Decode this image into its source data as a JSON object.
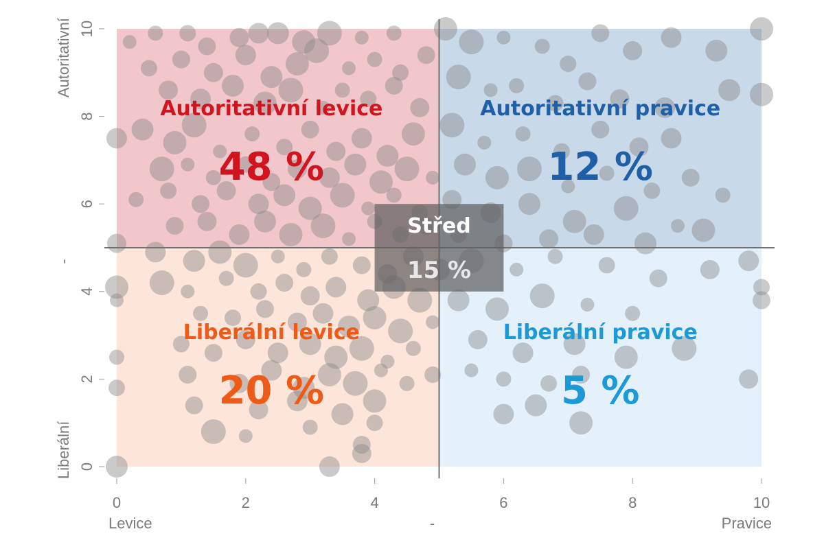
{
  "chart_data": {
    "type": "scatter",
    "xlim": [
      0,
      10
    ],
    "ylim": [
      0,
      10
    ],
    "x_ticks": [
      0,
      2,
      4,
      6,
      8,
      10
    ],
    "y_ticks": [
      0,
      2,
      4,
      6,
      8,
      10
    ],
    "x_axis": {
      "left_label": "Levice",
      "center_label": "-",
      "right_label": "Pravice"
    },
    "y_axis": {
      "bottom_label": "Liberální",
      "center_label": "-",
      "top_label": "Autoritativní"
    },
    "dividers": {
      "x": 5,
      "y": 5
    },
    "quadrants": [
      {
        "key": "top_left",
        "title": "Autoritativní levice",
        "value": "48 %",
        "color": "#d0151f",
        "fill": "#f2c7cb",
        "x": [
          0,
          5
        ],
        "y": [
          5,
          10
        ]
      },
      {
        "key": "top_right",
        "title": "Autoritativní pravice",
        "value": "12 %",
        "color": "#1f5fa8",
        "fill": "#c8d9ea",
        "x": [
          5,
          10
        ],
        "y": [
          5,
          10
        ]
      },
      {
        "key": "bottom_left",
        "title": "Liberální levice",
        "value": "20 %",
        "color": "#ee5a18",
        "fill": "#fde5da",
        "x": [
          0,
          5
        ],
        "y": [
          0,
          5
        ]
      },
      {
        "key": "bottom_right",
        "title": "Liberální pravice",
        "value": "5 %",
        "color": "#1d9ad6",
        "fill": "#e4f1fb",
        "x": [
          5,
          10
        ],
        "y": [
          0,
          5
        ]
      }
    ],
    "center": {
      "title": "Střed",
      "value": "15 %",
      "x": [
        4,
        6
      ],
      "y": [
        4,
        6
      ]
    },
    "points": [
      [
        0.2,
        9.7
      ],
      [
        0.6,
        9.9
      ],
      [
        1.1,
        9.9
      ],
      [
        1.4,
        9.6
      ],
      [
        1.9,
        9.8
      ],
      [
        2.2,
        9.9
      ],
      [
        2.5,
        9.9
      ],
      [
        2.9,
        9.7
      ],
      [
        3.3,
        9.9
      ],
      [
        3.8,
        9.8
      ],
      [
        4.3,
        9.9
      ],
      [
        0.5,
        9.1
      ],
      [
        1.0,
        9.3
      ],
      [
        1.5,
        9.0
      ],
      [
        2.0,
        9.4
      ],
      [
        2.4,
        8.9
      ],
      [
        2.8,
        9.2
      ],
      [
        3.1,
        9.5
      ],
      [
        3.6,
        9.1
      ],
      [
        4.0,
        9.3
      ],
      [
        4.4,
        9.0
      ],
      [
        4.8,
        9.4
      ],
      [
        0.8,
        8.6
      ],
      [
        1.3,
        8.4
      ],
      [
        1.8,
        8.7
      ],
      [
        2.3,
        8.3
      ],
      [
        2.7,
        8.6
      ],
      [
        3.2,
        8.2
      ],
      [
        3.5,
        8.6
      ],
      [
        3.9,
        8.4
      ],
      [
        4.3,
        8.7
      ],
      [
        4.7,
        8.2
      ],
      [
        0.0,
        7.5
      ],
      [
        0.4,
        7.7
      ],
      [
        0.9,
        7.4
      ],
      [
        1.2,
        7.8
      ],
      [
        1.6,
        7.2
      ],
      [
        2.1,
        7.6
      ],
      [
        2.6,
        7.3
      ],
      [
        3.0,
        7.7
      ],
      [
        3.4,
        7.2
      ],
      [
        3.8,
        7.5
      ],
      [
        4.2,
        7.1
      ],
      [
        4.6,
        7.6
      ],
      [
        0.7,
        6.8
      ],
      [
        1.1,
        6.9
      ],
      [
        1.5,
        6.6
      ],
      [
        2.0,
        6.9
      ],
      [
        2.4,
        6.5
      ],
      [
        2.8,
        6.8
      ],
      [
        3.3,
        6.6
      ],
      [
        3.7,
        6.9
      ],
      [
        4.1,
        6.5
      ],
      [
        4.5,
        6.8
      ],
      [
        4.9,
        6.6
      ],
      [
        0.3,
        6.1
      ],
      [
        0.8,
        6.3
      ],
      [
        1.3,
        6.0
      ],
      [
        1.7,
        6.3
      ],
      [
        2.2,
        6.0
      ],
      [
        2.6,
        6.2
      ],
      [
        3.0,
        5.9
      ],
      [
        3.5,
        6.2
      ],
      [
        3.9,
        5.9
      ],
      [
        4.3,
        6.2
      ],
      [
        4.7,
        5.8
      ],
      [
        0.9,
        5.5
      ],
      [
        1.4,
        5.6
      ],
      [
        1.9,
        5.3
      ],
      [
        2.3,
        5.6
      ],
      [
        2.7,
        5.3
      ],
      [
        3.2,
        5.5
      ],
      [
        3.6,
        5.2
      ],
      [
        4.0,
        5.6
      ],
      [
        4.4,
        5.3
      ],
      [
        4.8,
        5.5
      ],
      [
        0.0,
        5.1
      ],
      [
        0.6,
        4.9
      ],
      [
        1.2,
        4.7
      ],
      [
        1.6,
        4.9
      ],
      [
        2.0,
        4.6
      ],
      [
        2.5,
        4.8
      ],
      [
        2.9,
        4.5
      ],
      [
        3.3,
        4.8
      ],
      [
        3.8,
        4.6
      ],
      [
        4.2,
        4.4
      ],
      [
        4.6,
        4.8
      ],
      [
        5.0,
        4.5
      ],
      [
        0.0,
        4.1
      ],
      [
        0.7,
        4.2
      ],
      [
        1.1,
        4.0
      ],
      [
        1.7,
        4.3
      ],
      [
        2.2,
        4.0
      ],
      [
        2.6,
        4.2
      ],
      [
        3.0,
        3.9
      ],
      [
        3.4,
        4.1
      ],
      [
        3.9,
        3.8
      ],
      [
        4.3,
        4.1
      ],
      [
        4.7,
        3.8
      ],
      [
        0.0,
        3.8
      ],
      [
        1.3,
        3.5
      ],
      [
        1.8,
        3.4
      ],
      [
        2.3,
        3.6
      ],
      [
        2.8,
        3.3
      ],
      [
        3.2,
        3.5
      ],
      [
        3.6,
        3.2
      ],
      [
        4.0,
        3.4
      ],
      [
        4.4,
        3.1
      ],
      [
        4.9,
        3.3
      ],
      [
        0.0,
        2.5
      ],
      [
        1.0,
        2.8
      ],
      [
        1.5,
        2.6
      ],
      [
        2.0,
        2.9
      ],
      [
        2.5,
        2.6
      ],
      [
        3.0,
        2.8
      ],
      [
        3.4,
        2.5
      ],
      [
        3.8,
        2.7
      ],
      [
        4.2,
        2.4
      ],
      [
        4.6,
        2.7
      ],
      [
        0.0,
        1.8
      ],
      [
        1.1,
        2.1
      ],
      [
        1.9,
        1.9
      ],
      [
        2.4,
        2.2
      ],
      [
        2.9,
        1.8
      ],
      [
        3.3,
        2.1
      ],
      [
        3.7,
        1.9
      ],
      [
        4.1,
        2.2
      ],
      [
        4.5,
        1.9
      ],
      [
        4.9,
        2.1
      ],
      [
        1.2,
        1.4
      ],
      [
        2.2,
        1.3
      ],
      [
        2.8,
        1.5
      ],
      [
        3.5,
        1.2
      ],
      [
        4.0,
        1.5
      ],
      [
        1.5,
        0.8
      ],
      [
        2.0,
        0.7
      ],
      [
        3.0,
        0.9
      ],
      [
        4.0,
        1.0
      ],
      [
        3.8,
        0.5
      ],
      [
        3.8,
        0.3
      ],
      [
        3.3,
        0.0
      ],
      [
        0.0,
        0.0
      ],
      [
        5.1,
        10.0
      ],
      [
        5.5,
        9.7
      ],
      [
        6.0,
        9.8
      ],
      [
        6.6,
        9.6
      ],
      [
        7.0,
        9.2
      ],
      [
        7.5,
        9.9
      ],
      [
        8.0,
        9.5
      ],
      [
        8.6,
        9.8
      ],
      [
        9.3,
        9.5
      ],
      [
        10.0,
        10.0
      ],
      [
        5.3,
        8.9
      ],
      [
        5.8,
        8.6
      ],
      [
        6.2,
        8.7
      ],
      [
        6.8,
        8.3
      ],
      [
        7.3,
        8.8
      ],
      [
        7.8,
        8.4
      ],
      [
        8.5,
        8.2
      ],
      [
        9.5,
        8.6
      ],
      [
        10.0,
        8.5
      ],
      [
        5.2,
        7.8
      ],
      [
        5.7,
        7.4
      ],
      [
        6.3,
        7.6
      ],
      [
        6.9,
        7.2
      ],
      [
        7.5,
        7.7
      ],
      [
        8.1,
        7.3
      ],
      [
        8.6,
        7.5
      ],
      [
        5.4,
        6.9
      ],
      [
        5.9,
        6.6
      ],
      [
        6.4,
        6.8
      ],
      [
        7.0,
        6.4
      ],
      [
        7.6,
        6.7
      ],
      [
        8.3,
        6.3
      ],
      [
        8.9,
        6.6
      ],
      [
        5.2,
        6.1
      ],
      [
        5.8,
        5.8
      ],
      [
        6.4,
        6.0
      ],
      [
        7.1,
        5.6
      ],
      [
        7.9,
        5.9
      ],
      [
        8.7,
        5.5
      ],
      [
        9.4,
        6.2
      ],
      [
        5.3,
        5.3
      ],
      [
        6.0,
        5.1
      ],
      [
        6.7,
        5.2
      ],
      [
        7.4,
        5.3
      ],
      [
        8.2,
        5.1
      ],
      [
        9.1,
        5.4
      ],
      [
        5.5,
        4.7
      ],
      [
        6.2,
        4.5
      ],
      [
        6.8,
        4.8
      ],
      [
        7.6,
        4.6
      ],
      [
        8.4,
        4.3
      ],
      [
        9.2,
        4.5
      ],
      [
        9.8,
        4.7
      ],
      [
        5.3,
        3.8
      ],
      [
        5.9,
        3.6
      ],
      [
        6.6,
        3.9
      ],
      [
        7.3,
        3.7
      ],
      [
        8.0,
        3.5
      ],
      [
        10.0,
        4.1
      ],
      [
        10.0,
        3.8
      ],
      [
        5.6,
        2.9
      ],
      [
        6.3,
        2.6
      ],
      [
        7.1,
        2.8
      ],
      [
        7.9,
        2.5
      ],
      [
        8.8,
        2.7
      ],
      [
        5.5,
        2.2
      ],
      [
        6.0,
        2.0
      ],
      [
        6.7,
        1.9
      ],
      [
        7.2,
        2.1
      ],
      [
        9.8,
        2.0
      ],
      [
        6.0,
        1.2
      ],
      [
        6.5,
        1.4
      ],
      [
        7.2,
        1.0
      ]
    ]
  }
}
